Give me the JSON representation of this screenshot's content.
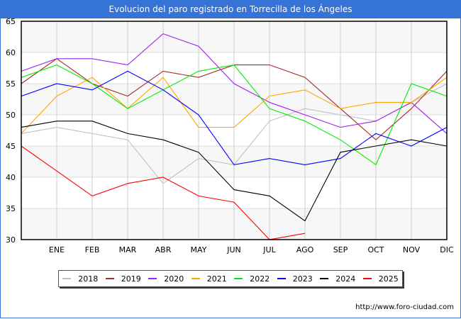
{
  "title": "Evolucion del paro registrado en Torrecilla de los Ángeles",
  "source": "http://www.foro-ciudad.com",
  "chart_data": {
    "type": "line",
    "title": "Evolucion del paro registrado en Torrecilla de los Ángeles",
    "xlabel": "",
    "ylabel": "",
    "categories": [
      "",
      "ENE",
      "FEB",
      "MAR",
      "ABR",
      "MAY",
      "JUN",
      "JUL",
      "AGO",
      "SEP",
      "OCT",
      "NOV",
      "DIC"
    ],
    "ylim": [
      30,
      65
    ],
    "yticks": [
      30,
      35,
      40,
      45,
      50,
      55,
      60,
      65
    ],
    "grid": true,
    "legend_position": "bottom",
    "series": [
      {
        "name": "2018",
        "color": "#c0c0c0",
        "values": [
          47,
          48,
          47,
          46,
          39,
          43,
          42,
          49,
          51,
          50,
          49,
          52,
          55
        ]
      },
      {
        "name": "2019",
        "color": "#a52a2a",
        "values": [
          55,
          59,
          55,
          53,
          57,
          56,
          58,
          58,
          56,
          51,
          46,
          51,
          57
        ]
      },
      {
        "name": "2020",
        "color": "#a020f0",
        "values": [
          57,
          59,
          59,
          58,
          63,
          61,
          55,
          52,
          50,
          48,
          49,
          52,
          47
        ]
      },
      {
        "name": "2021",
        "color": "#ffa500",
        "values": [
          47,
          53,
          56,
          51,
          56,
          48,
          48,
          53,
          54,
          51,
          52,
          52,
          56
        ]
      },
      {
        "name": "2022",
        "color": "#00ee00",
        "values": [
          56,
          58,
          55,
          51,
          54,
          57,
          58,
          51,
          49,
          46,
          42,
          55,
          53
        ]
      },
      {
        "name": "2023",
        "color": "#0000ff",
        "values": [
          53,
          55,
          54,
          57,
          54,
          50,
          42,
          43,
          42,
          43,
          47,
          45,
          48
        ]
      },
      {
        "name": "2024",
        "color": "#000000",
        "values": [
          48,
          49,
          49,
          47,
          46,
          44,
          38,
          37,
          33,
          44,
          45,
          46,
          45
        ]
      },
      {
        "name": "2025",
        "color": "#ff0000",
        "values": [
          45,
          41,
          37,
          39,
          40,
          37,
          36,
          30,
          31
        ]
      }
    ]
  }
}
